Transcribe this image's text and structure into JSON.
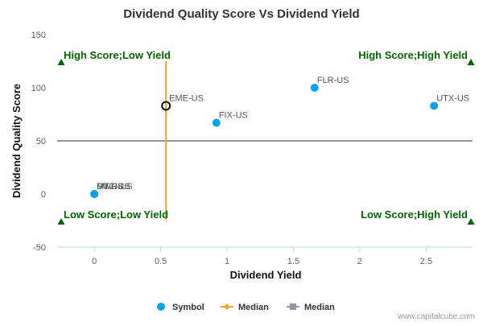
{
  "chart_data": {
    "type": "scatter",
    "title": "Dividend Quality Score Vs Dividend Yield",
    "xlabel": "Dividend Yield",
    "ylabel": "Dividend Quality Score",
    "xlim": [
      -0.28,
      2.85
    ],
    "ylim": [
      -50,
      150
    ],
    "x_ticks": [
      0,
      0.5,
      1,
      1.5,
      2,
      2.5
    ],
    "x_tick_labels": [
      "0",
      "0.5",
      "1",
      "1.5",
      "2",
      "2.5"
    ],
    "y_ticks": [
      -50,
      0,
      50,
      100,
      150
    ],
    "y_tick_labels": [
      "-50",
      "0",
      "50",
      "100",
      "150"
    ],
    "grid": false,
    "legend_position": "bottom",
    "series": [
      {
        "name": "Symbol",
        "color": "#0aa3ea",
        "points": [
          {
            "label": "FLR-US",
            "x": 1.66,
            "y": 100
          },
          {
            "label": "UTX-US",
            "x": 2.56,
            "y": 83
          },
          {
            "label": "FIX-US",
            "x": 0.92,
            "y": 67
          },
          {
            "label": "DY-US",
            "x": 0.0,
            "y": 0
          },
          {
            "label": "PWR-US",
            "x": 0.0,
            "y": 0
          },
          {
            "label": "MTZ-US",
            "x": 0.0,
            "y": 0
          }
        ]
      }
    ],
    "highlight": {
      "label": "EME-US",
      "x": 0.54,
      "y": 83
    },
    "median_x": {
      "name": "Median",
      "value": 0.54,
      "y_range": [
        -25,
        125
      ],
      "color": "#f5a623"
    },
    "median_y": {
      "name": "Median",
      "value": 50,
      "color": "#8f98a3"
    },
    "quadrants": [
      {
        "label": "High Score;Low Yield",
        "position": "top-left"
      },
      {
        "label": "High Score;High Yield",
        "position": "top-right"
      },
      {
        "label": "Low Score;Low Yield",
        "position": "bottom-left"
      },
      {
        "label": "Low Score;High Yield",
        "position": "bottom-right"
      }
    ],
    "quadrant_color": "#006600",
    "watermark": "www.capitalcube.com"
  }
}
